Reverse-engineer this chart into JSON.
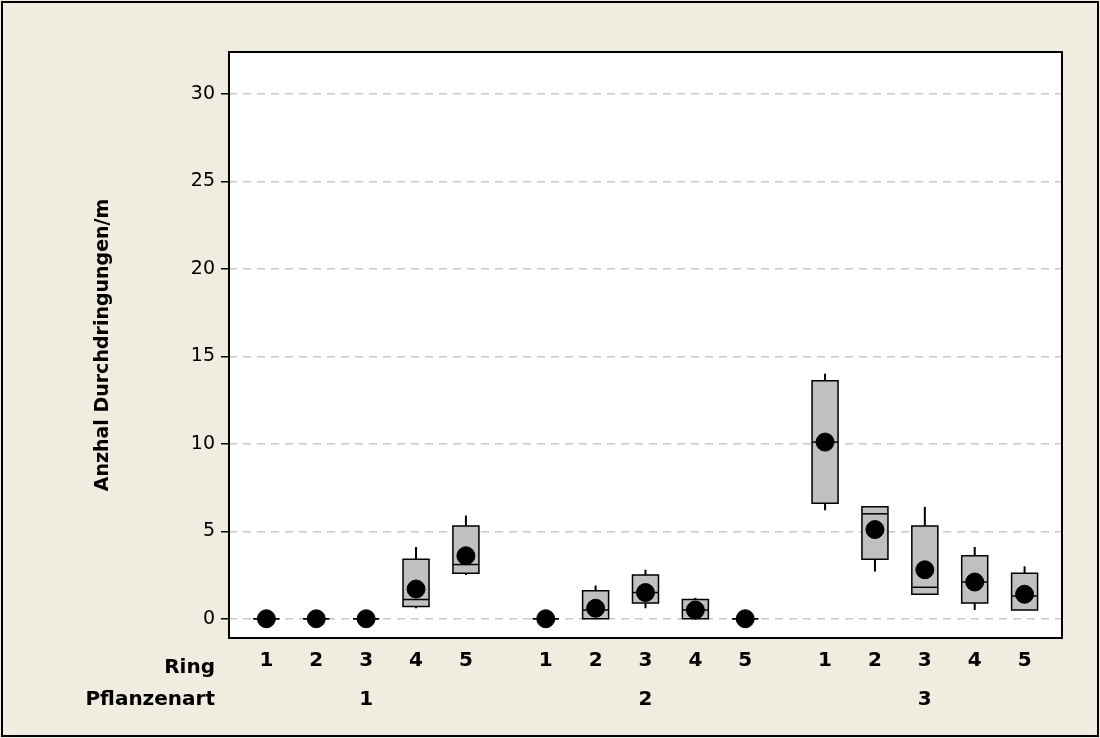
{
  "chart_data": {
    "type": "box",
    "ylabel": "Anzhal Durchdringungen/m",
    "xlabel": "Ring",
    "categories": [
      "1",
      "2",
      "3",
      "4",
      "5",
      "1",
      "2",
      "3",
      "4",
      "5",
      "1",
      "2",
      "3",
      "4",
      "5"
    ],
    "annotations": [
      "Pflanzenart",
      "1",
      "2",
      "3"
    ],
    "ylim": [
      -1.1,
      32.4
    ],
    "yticks": [
      0,
      5,
      10,
      15,
      20,
      25,
      30
    ],
    "grid": "y",
    "marker": "circle",
    "series": [
      {
        "color": "#c0c0c0",
        "boxes": [
          {
            "low": 0,
            "q1": 0,
            "median": 0,
            "q3": 0,
            "high": 0,
            "mean": 0
          },
          {
            "low": 0,
            "q1": 0,
            "median": 0,
            "q3": 0,
            "high": 0,
            "mean": 0
          },
          {
            "low": 0,
            "q1": 0,
            "median": 0,
            "q3": 0,
            "high": 0,
            "mean": 0
          },
          {
            "low": 0.6,
            "q1": 0.7,
            "median": 1.1,
            "q3": 3.4,
            "high": 4.1,
            "mean": 1.7
          },
          {
            "low": 2.5,
            "q1": 2.6,
            "median": 3.1,
            "q3": 5.3,
            "high": 5.9,
            "mean": 3.6
          },
          {
            "low": 0,
            "q1": 0,
            "median": 0,
            "q3": 0,
            "high": 0,
            "mean": 0
          },
          {
            "low": 0,
            "q1": 0,
            "median": 0.5,
            "q3": 1.6,
            "high": 1.9,
            "mean": 0.6
          },
          {
            "low": 0.6,
            "q1": 0.9,
            "median": 1.5,
            "q3": 2.5,
            "high": 2.8,
            "mean": 1.5
          },
          {
            "low": 0,
            "q1": 0,
            "median": 0.5,
            "q3": 1.1,
            "high": 1.2,
            "mean": 0.5
          },
          {
            "low": 0,
            "q1": 0,
            "median": 0,
            "q3": 0,
            "high": 0,
            "mean": 0
          },
          {
            "low": 6.2,
            "q1": 6.6,
            "median": 10.1,
            "q3": 13.6,
            "high": 14,
            "mean": 10.1
          },
          {
            "low": 2.7,
            "q1": 3.4,
            "median": 6,
            "q3": 6.4,
            "high": 6.4,
            "mean": 5.1
          },
          {
            "low": 1.4,
            "q1": 1.4,
            "median": 1.8,
            "q3": 5.3,
            "high": 6.4,
            "mean": 2.8
          },
          {
            "low": 0.5,
            "q1": 0.9,
            "median": 2.1,
            "q3": 3.6,
            "high": 4.1,
            "mean": 2.1
          },
          {
            "low": 0.5,
            "q1": 0.5,
            "median": 1.3,
            "q3": 2.6,
            "high": 3,
            "mean": 1.4
          }
        ]
      }
    ]
  }
}
